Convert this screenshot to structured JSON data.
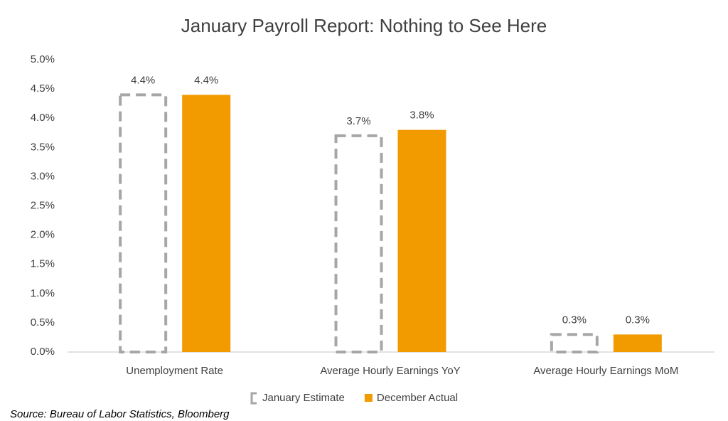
{
  "chart_data": {
    "type": "bar",
    "title": "January Payroll Report: Nothing to See Here",
    "categories": [
      "Unemployment Rate",
      "Average Hourly Earnings YoY",
      "Average Hourly Earnings MoM"
    ],
    "series": [
      {
        "name": "January Estimate",
        "color": "#a6a6a6",
        "dashed": true,
        "values": [
          4.4,
          3.7,
          0.3
        ],
        "value_labels": [
          "4.4%",
          "3.7%",
          "0.3%"
        ]
      },
      {
        "name": "December Actual",
        "color": "#f29b00",
        "dashed": false,
        "values": [
          4.4,
          3.8,
          0.3
        ],
        "value_labels": [
          "4.4%",
          "3.8%",
          "0.3%"
        ]
      }
    ],
    "ylim": [
      0,
      5
    ],
    "yticks": [
      {
        "value": 0,
        "label": "0.0%"
      },
      {
        "value": 0.5,
        "label": "0.5%"
      },
      {
        "value": 1,
        "label": "1.0%"
      },
      {
        "value": 1.5,
        "label": "1.5%"
      },
      {
        "value": 2,
        "label": "2.0%"
      },
      {
        "value": 2.5,
        "label": "2.5%"
      },
      {
        "value": 3,
        "label": "3.0%"
      },
      {
        "value": 3.5,
        "label": "3.5%"
      },
      {
        "value": 4,
        "label": "4.0%"
      },
      {
        "value": 4.5,
        "label": "4.5%"
      },
      {
        "value": 5,
        "label": "5.0%"
      }
    ],
    "grid": false,
    "legend": "bottom",
    "source": "Source: Bureau of Labor Statistics, Bloomberg"
  }
}
